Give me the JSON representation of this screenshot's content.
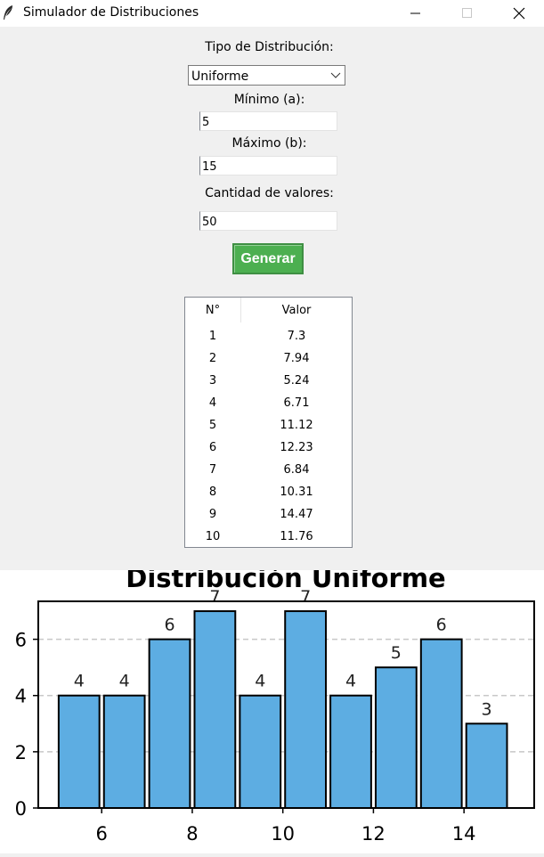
{
  "window": {
    "title": "Simulador de Distribuciones",
    "icon": "feather-icon"
  },
  "form": {
    "dist_type_label": "Tipo de Distribución:",
    "dist_type_value": "Uniforme",
    "min_label": "Mínimo (a):",
    "min_value": "5",
    "max_label": "Máximo (b):",
    "max_value": "15",
    "count_label": "Cantidad de valores:",
    "count_value": "50",
    "generate_label": "Generar",
    "generate_color": "#4caf50"
  },
  "table": {
    "headers": [
      "N°",
      "Valor"
    ],
    "rows": [
      [
        "1",
        "7.3"
      ],
      [
        "2",
        "7.94"
      ],
      [
        "3",
        "5.24"
      ],
      [
        "4",
        "6.71"
      ],
      [
        "5",
        "11.12"
      ],
      [
        "6",
        "12.23"
      ],
      [
        "7",
        "6.84"
      ],
      [
        "8",
        "10.31"
      ],
      [
        "9",
        "14.47"
      ],
      [
        "10",
        "11.76"
      ]
    ]
  },
  "chart_data": {
    "type": "bar",
    "title": "Distribución Uniforme",
    "bin_width": 1,
    "bins": [
      {
        "x0": 5.0,
        "x1": 6.0,
        "value": 4
      },
      {
        "x0": 6.0,
        "x1": 7.0,
        "value": 4
      },
      {
        "x0": 7.0,
        "x1": 8.0,
        "value": 6
      },
      {
        "x0": 8.0,
        "x1": 9.0,
        "value": 7
      },
      {
        "x0": 9.0,
        "x1": 10.0,
        "value": 4
      },
      {
        "x0": 10.0,
        "x1": 11.0,
        "value": 7
      },
      {
        "x0": 11.0,
        "x1": 12.0,
        "value": 4
      },
      {
        "x0": 12.0,
        "x1": 13.0,
        "value": 5
      },
      {
        "x0": 13.0,
        "x1": 14.0,
        "value": 6
      },
      {
        "x0": 14.0,
        "x1": 15.0,
        "value": 3
      }
    ],
    "xticks": [
      6,
      8,
      10,
      12,
      14
    ],
    "yticks": [
      0,
      2,
      4,
      6
    ],
    "xlim": [
      4.6,
      15.55
    ],
    "ylim": [
      0,
      7.35
    ],
    "grid": "y-dashed",
    "bar_color": "#5dade2",
    "edge_color": "#000000"
  }
}
